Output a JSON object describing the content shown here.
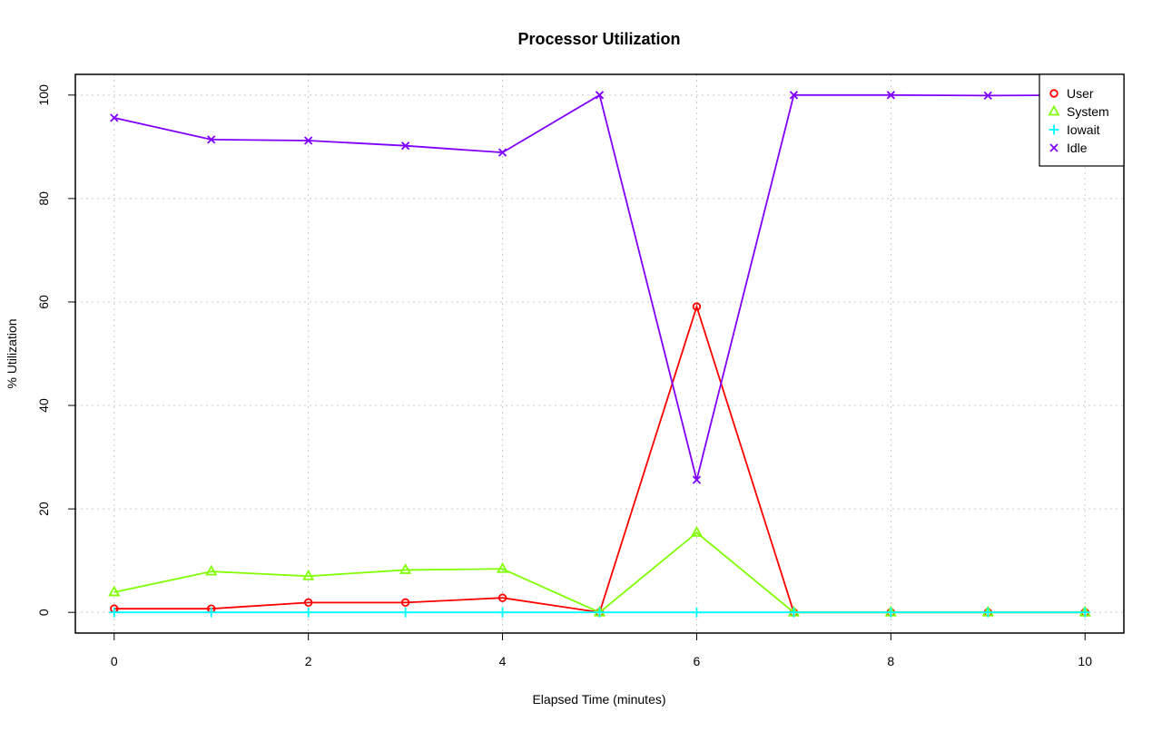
{
  "chart_data": {
    "type": "line",
    "title": "Processor Utilization",
    "xlabel": "Elapsed Time (minutes)",
    "ylabel": "% Utilization",
    "xlim": [
      -0.4,
      10.4
    ],
    "ylim": [
      -4,
      104
    ],
    "xticks": [
      0,
      2,
      4,
      6,
      8,
      10
    ],
    "yticks": [
      0,
      20,
      40,
      60,
      80,
      100
    ],
    "grid": true,
    "legend_position": "top-right",
    "x": [
      0,
      1,
      2,
      3,
      4,
      5,
      6,
      7,
      8,
      9,
      10
    ],
    "series": [
      {
        "name": "User",
        "color": "#ff0000",
        "marker": "circle",
        "values": [
          0.7,
          0.7,
          1.9,
          1.9,
          2.8,
          0,
          59.1,
          0,
          0,
          0,
          0
        ]
      },
      {
        "name": "System",
        "color": "#80ff00",
        "marker": "triangle",
        "values": [
          3.9,
          7.9,
          7.0,
          8.2,
          8.4,
          0,
          15.4,
          0,
          0,
          0,
          0
        ]
      },
      {
        "name": "Iowait",
        "color": "#00ffff",
        "marker": "plus",
        "values": [
          0,
          0,
          0,
          0,
          0,
          0,
          0,
          0,
          0,
          0,
          0
        ]
      },
      {
        "name": "Idle",
        "color": "#8000ff",
        "marker": "cross",
        "values": [
          95.6,
          91.4,
          91.2,
          90.2,
          88.9,
          100,
          25.6,
          100,
          100,
          99.9,
          100
        ]
      }
    ]
  }
}
